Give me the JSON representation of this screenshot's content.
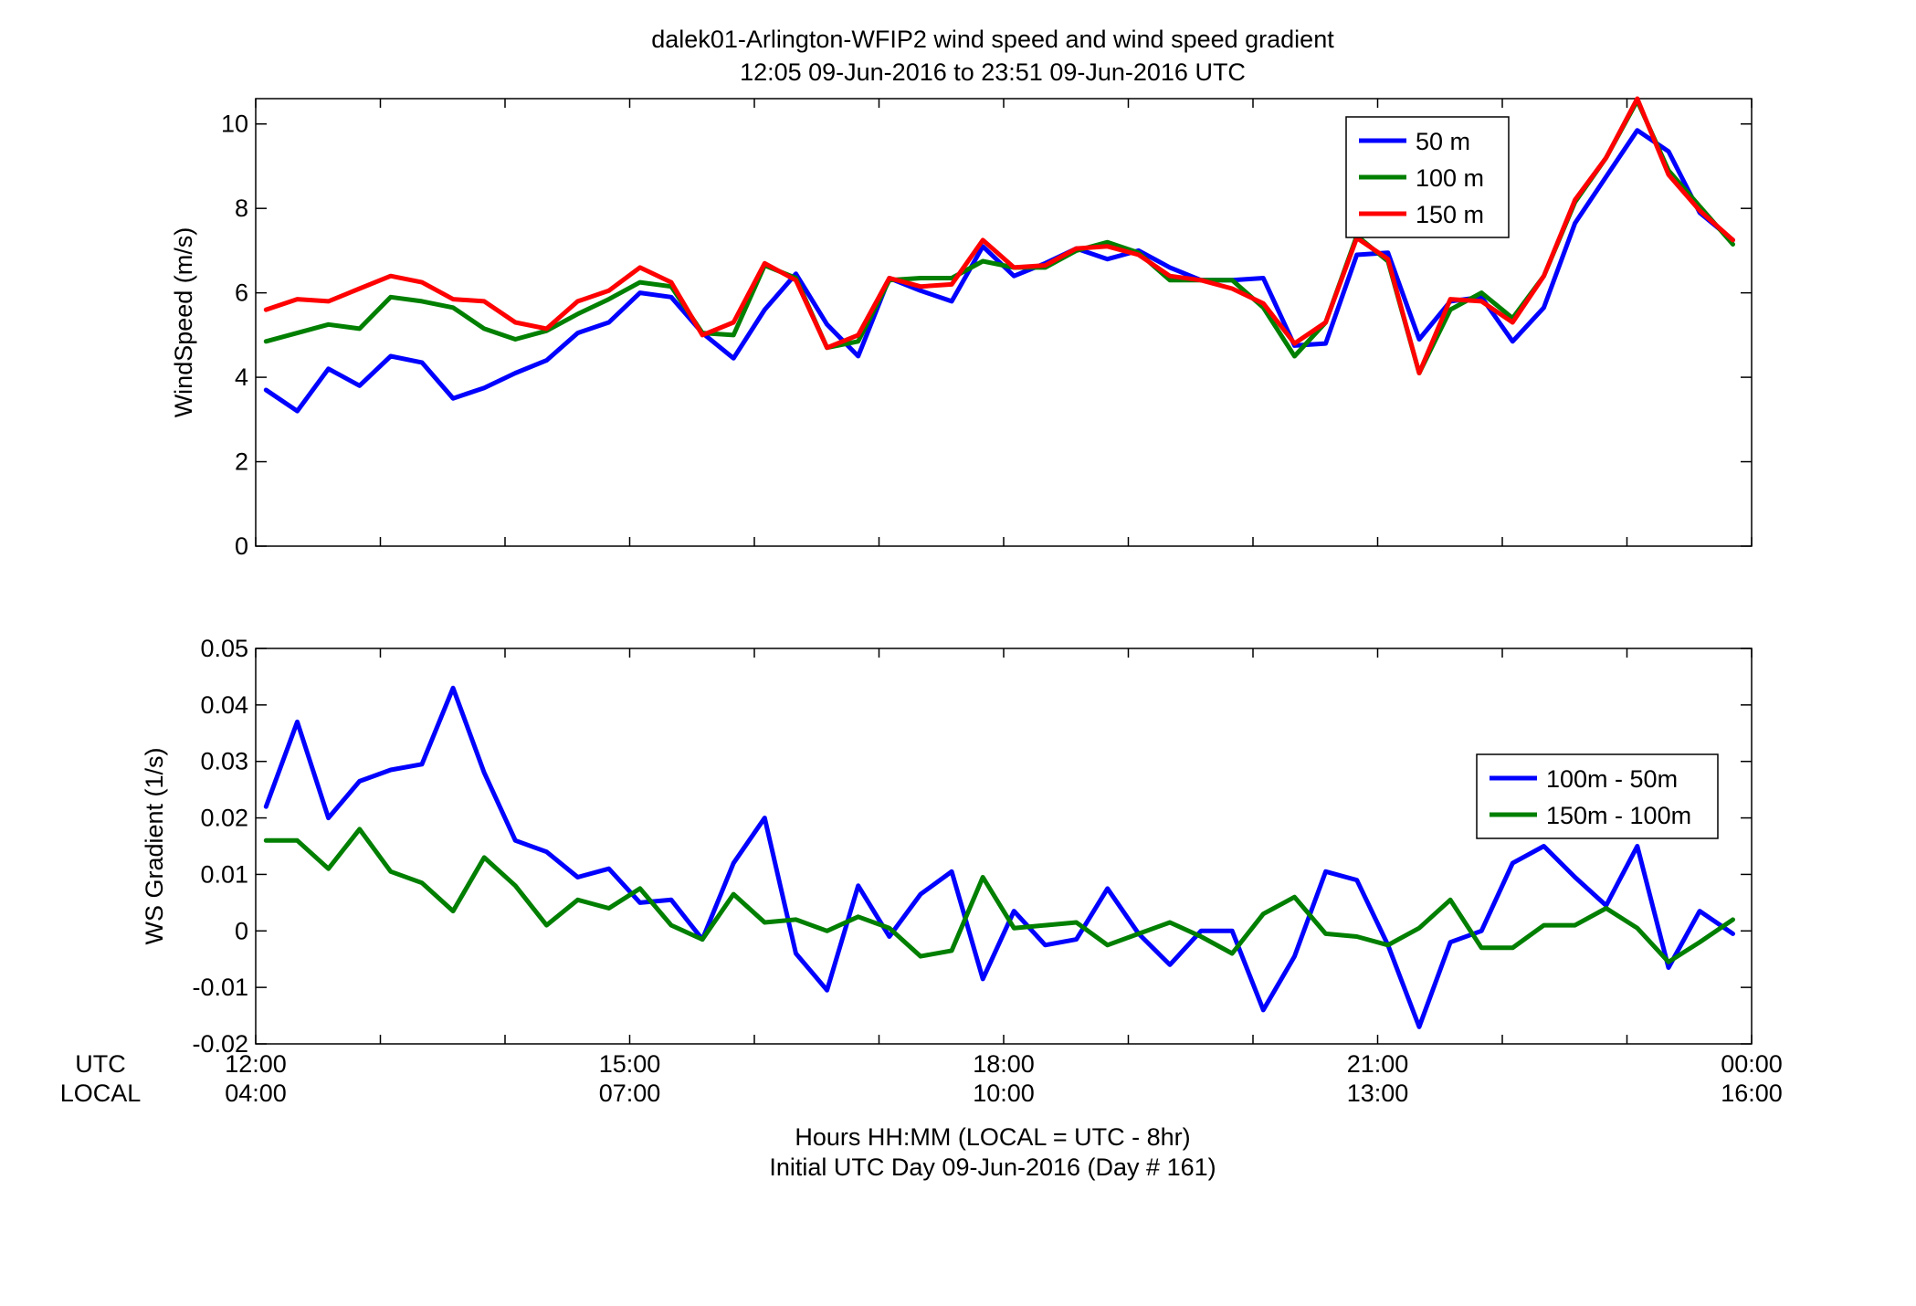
{
  "title": {
    "line1": "dalek01-Arlington-WFIP2  wind speed and wind speed gradient",
    "line2": "12:05 09-Jun-2016 to 23:51 09-Jun-2016  UTC"
  },
  "xaxis": {
    "row_label_utc": "UTC",
    "row_label_local": "LOCAL",
    "label_line1": "Hours HH:MM  (LOCAL = UTC - 8hr)",
    "label_line2": "Initial UTC Day 09-Jun-2016 (Day # 161)",
    "ticks": [
      {
        "hour": 12,
        "utc": "12:00",
        "local": "04:00"
      },
      {
        "hour": 15,
        "utc": "15:00",
        "local": "07:00"
      },
      {
        "hour": 18,
        "utc": "18:00",
        "local": "10:00"
      },
      {
        "hour": 21,
        "utc": "21:00",
        "local": "13:00"
      },
      {
        "hour": 24,
        "utc": "00:00",
        "local": "16:00"
      }
    ]
  },
  "colors": {
    "blue": "#0000ff",
    "green": "#007f00",
    "red": "#ff0000"
  },
  "chart_data": [
    {
      "type": "line",
      "ylabel": "WindSpeed (m/s)",
      "xlim": [
        12,
        24
      ],
      "ylim": [
        0,
        10.6
      ],
      "yticks": [
        0,
        2,
        4,
        6,
        8,
        10
      ],
      "grid": false,
      "legend_position": "top-right",
      "x": [
        12.083,
        12.333,
        12.583,
        12.833,
        13.083,
        13.333,
        13.583,
        13.833,
        14.083,
        14.333,
        14.583,
        14.833,
        15.083,
        15.333,
        15.583,
        15.833,
        16.083,
        16.333,
        16.583,
        16.833,
        17.083,
        17.333,
        17.583,
        17.833,
        18.083,
        18.333,
        18.583,
        18.833,
        19.083,
        19.333,
        19.583,
        19.833,
        20.083,
        20.333,
        20.583,
        20.833,
        21.083,
        21.333,
        21.583,
        21.833,
        22.083,
        22.333,
        22.583,
        22.833,
        23.083,
        23.333,
        23.583,
        23.85
      ],
      "series": [
        {
          "name": "50 m",
          "color": "#0000ff",
          "values": [
            3.7,
            3.2,
            4.2,
            3.8,
            4.5,
            4.35,
            3.5,
            3.75,
            4.1,
            4.4,
            5.05,
            5.3,
            6.0,
            5.9,
            5.05,
            4.45,
            5.6,
            6.45,
            5.25,
            4.5,
            6.35,
            6.05,
            5.8,
            7.1,
            6.4,
            6.7,
            7.05,
            6.8,
            7.0,
            6.6,
            6.3,
            6.3,
            6.35,
            4.75,
            4.8,
            6.9,
            6.95,
            4.9,
            5.8,
            5.9,
            4.85,
            5.65,
            7.65,
            8.75,
            9.85,
            9.35,
            7.9,
            7.25
          ]
        },
        {
          "name": "100 m",
          "color": "#007f00",
          "values": [
            4.85,
            5.05,
            5.25,
            5.15,
            5.9,
            5.8,
            5.65,
            5.15,
            4.9,
            5.1,
            5.5,
            5.85,
            6.25,
            6.15,
            5.05,
            5.0,
            6.65,
            6.35,
            4.7,
            4.85,
            6.3,
            6.35,
            6.35,
            6.75,
            6.6,
            6.6,
            7.0,
            7.2,
            6.95,
            6.3,
            6.3,
            6.3,
            5.65,
            4.5,
            5.3,
            7.35,
            6.75,
            4.1,
            5.6,
            6.0,
            5.4,
            6.4,
            8.15,
            9.2,
            10.55,
            8.9,
            8.05,
            7.15
          ]
        },
        {
          "name": "150 m",
          "color": "#ff0000",
          "values": [
            5.6,
            5.85,
            5.8,
            6.1,
            6.4,
            6.25,
            5.85,
            5.8,
            5.3,
            5.15,
            5.8,
            6.05,
            6.6,
            6.25,
            5.0,
            5.3,
            6.7,
            6.3,
            4.7,
            5.0,
            6.35,
            6.15,
            6.2,
            7.25,
            6.6,
            6.65,
            7.05,
            7.1,
            6.9,
            6.4,
            6.3,
            6.1,
            5.75,
            4.8,
            5.3,
            7.3,
            6.8,
            4.1,
            5.85,
            5.8,
            5.3,
            6.4,
            8.2,
            9.2,
            10.6,
            8.8,
            7.95,
            7.25
          ]
        }
      ]
    },
    {
      "type": "line",
      "ylabel": "WS Gradient (1/s)",
      "xlim": [
        12,
        24
      ],
      "ylim": [
        -0.02,
        0.05
      ],
      "yticks": [
        -0.02,
        -0.01,
        0,
        0.01,
        0.02,
        0.03,
        0.04,
        0.05
      ],
      "grid": false,
      "legend_position": "middle-right",
      "x": [
        12.083,
        12.333,
        12.583,
        12.833,
        13.083,
        13.333,
        13.583,
        13.833,
        14.083,
        14.333,
        14.583,
        14.833,
        15.083,
        15.333,
        15.583,
        15.833,
        16.083,
        16.333,
        16.583,
        16.833,
        17.083,
        17.333,
        17.583,
        17.833,
        18.083,
        18.333,
        18.583,
        18.833,
        19.083,
        19.333,
        19.583,
        19.833,
        20.083,
        20.333,
        20.583,
        20.833,
        21.083,
        21.333,
        21.583,
        21.833,
        22.083,
        22.333,
        22.583,
        22.833,
        23.083,
        23.333,
        23.583,
        23.85
      ],
      "series": [
        {
          "name": "100m - 50m",
          "color": "#0000ff",
          "values": [
            0.022,
            0.037,
            0.02,
            0.0265,
            0.0285,
            0.0295,
            0.043,
            0.028,
            0.016,
            0.014,
            0.0095,
            0.011,
            0.005,
            0.0055,
            -0.0015,
            0.012,
            0.02,
            -0.004,
            -0.0105,
            0.008,
            -0.001,
            0.0065,
            0.0105,
            -0.0085,
            0.0035,
            -0.0025,
            -0.0015,
            0.0075,
            -0.0005,
            -0.006,
            0.0,
            0.0,
            -0.014,
            -0.0045,
            0.0105,
            0.009,
            -0.0025,
            -0.017,
            -0.002,
            0.0,
            0.012,
            0.015,
            0.0095,
            0.0045,
            0.015,
            -0.0065,
            0.0035,
            -0.0005
          ]
        },
        {
          "name": "150m - 100m",
          "color": "#007f00",
          "values": [
            0.016,
            0.016,
            0.011,
            0.018,
            0.0105,
            0.0085,
            0.0035,
            0.013,
            0.008,
            0.001,
            0.0055,
            0.004,
            0.0075,
            0.001,
            -0.0015,
            0.0065,
            0.0015,
            0.002,
            0.0,
            0.0025,
            0.0005,
            -0.0045,
            -0.0035,
            0.0095,
            0.0005,
            0.001,
            0.0015,
            -0.0025,
            -0.0005,
            0.0015,
            -0.001,
            -0.004,
            0.003,
            0.006,
            -0.0005,
            -0.001,
            -0.0025,
            0.0005,
            0.0055,
            -0.003,
            -0.003,
            0.001,
            0.001,
            0.004,
            0.0005,
            -0.0055,
            -0.002,
            0.002
          ]
        }
      ]
    }
  ]
}
